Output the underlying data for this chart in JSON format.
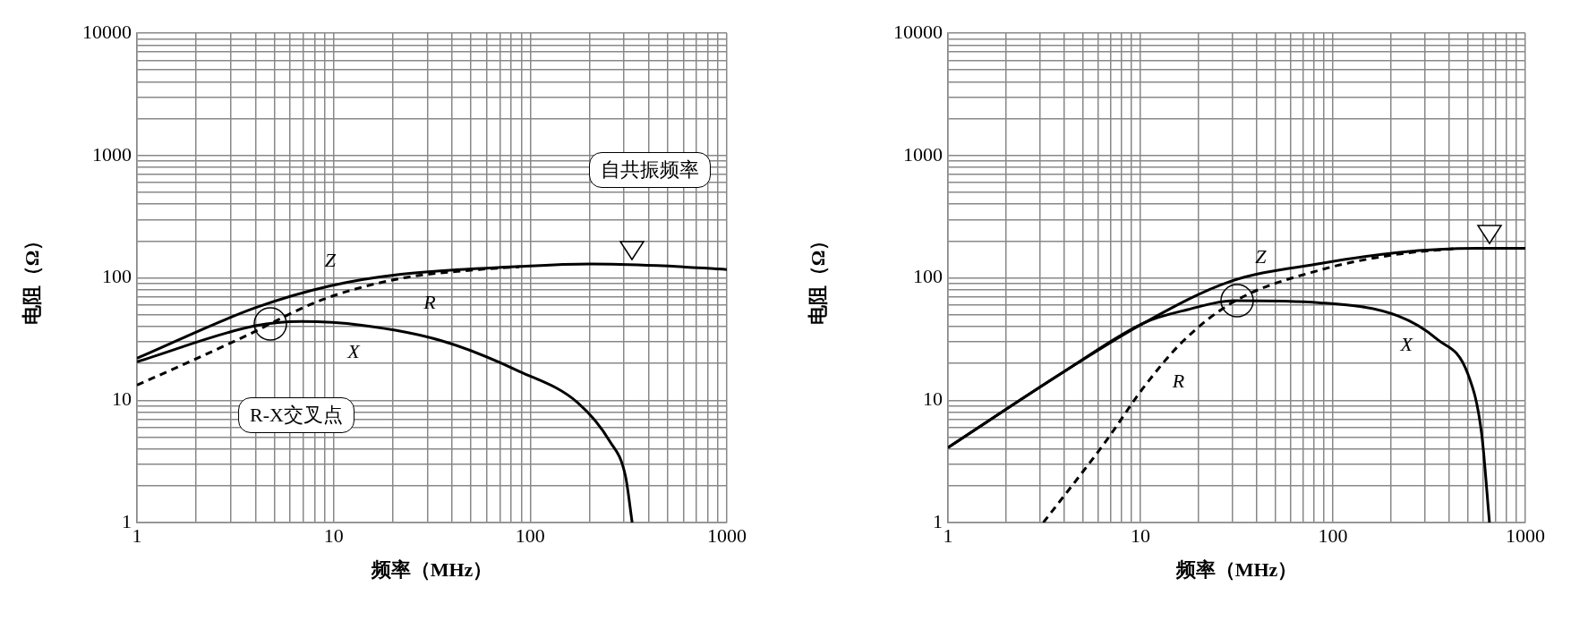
{
  "chart_data": [
    {
      "type": "line",
      "xlabel": "频率（MHz）",
      "ylabel": "电阻（Ω）",
      "log": "xy",
      "grid": true,
      "legend": false,
      "xlim": [
        1,
        1000
      ],
      "ylim": [
        1,
        10000
      ],
      "xticks": [
        1,
        {
          "value": 2,
          "label": null
        },
        {
          "value": 3,
          "label": null
        },
        {
          "value": 4,
          "label": null
        },
        {
          "value": 5,
          "label": null
        },
        {
          "value": 6,
          "label": null
        },
        {
          "value": 7,
          "label": null
        },
        {
          "value": 8,
          "label": null
        },
        {
          "value": 9,
          "label": null
        },
        10,
        {
          "value": 20,
          "label": null
        },
        {
          "value": 30,
          "label": null
        },
        {
          "value": 40,
          "label": null
        },
        {
          "value": 50,
          "label": null
        },
        {
          "value": 60,
          "label": null
        },
        {
          "value": 70,
          "label": null
        },
        {
          "value": 80,
          "label": null
        },
        {
          "value": 90,
          "label": null
        },
        100,
        {
          "value": 200,
          "label": null
        },
        {
          "value": 300,
          "label": null
        },
        {
          "value": 400,
          "label": null
        },
        {
          "value": 500,
          "label": null
        },
        {
          "value": 600,
          "label": null
        },
        {
          "value": 700,
          "label": null
        },
        {
          "value": 800,
          "label": null
        },
        {
          "value": 900,
          "label": null
        },
        1000
      ],
      "yticks": [
        1,
        {
          "value": 2,
          "label": null
        },
        {
          "value": 3,
          "label": null
        },
        {
          "value": 4,
          "label": null
        },
        {
          "value": 5,
          "label": null
        },
        {
          "value": 6,
          "label": null
        },
        {
          "value": 7,
          "label": null
        },
        {
          "value": 8,
          "label": null
        },
        {
          "value": 9,
          "label": null
        },
        10,
        {
          "value": 20,
          "label": null
        },
        {
          "value": 30,
          "label": null
        },
        {
          "value": 40,
          "label": null
        },
        {
          "value": 50,
          "label": null
        },
        {
          "value": 60,
          "label": null
        },
        {
          "value": 70,
          "label": null
        },
        {
          "value": 80,
          "label": null
        },
        {
          "value": 90,
          "label": null
        },
        100,
        {
          "value": 200,
          "label": null
        },
        {
          "value": 300,
          "label": null
        },
        {
          "value": 400,
          "label": null
        },
        {
          "value": 500,
          "label": null
        },
        {
          "value": 600,
          "label": null
        },
        {
          "value": 700,
          "label": null
        },
        {
          "value": 800,
          "label": null
        },
        {
          "value": 900,
          "label": null
        },
        1000,
        {
          "value": 2000,
          "label": null
        },
        {
          "value": 3000,
          "label": null
        },
        {
          "value": 4000,
          "label": null
        },
        {
          "value": 5000,
          "label": null
        },
        {
          "value": 6000,
          "label": null
        },
        {
          "value": 7000,
          "label": null
        },
        {
          "value": 8000,
          "label": null
        },
        {
          "value": 9000,
          "label": null
        },
        10000
      ],
      "annotations": [
        "自共振频率",
        "R-X交叉点"
      ],
      "series": [
        {
          "name": "Z",
          "color": "#000000",
          "line_style": "solid",
          "x": [
            1,
            4,
            9.6,
            22,
            88,
            201,
            442,
            1000
          ],
          "values": [
            22,
            57,
            86,
            107,
            124,
            130,
            126,
            117
          ]
        },
        {
          "name": "R",
          "color": "#000000",
          "line_style": "dashed",
          "x": [
            1,
            1.9,
            3.5,
            8.7,
            22,
            55,
            88
          ],
          "values": [
            13.3,
            21,
            33,
            66,
            99,
            117,
            123
          ]
        },
        {
          "name": "X",
          "color": "#000000",
          "line_style": "solid",
          "x": [
            1,
            4,
            6.9,
            13.9,
            35,
            88,
            175,
            254,
            305,
            330
          ],
          "values": [
            20.6,
            40.6,
            44,
            41,
            30.8,
            17.2,
            9.5,
            4.6,
            2.4,
            1
          ]
        }
      ]
    },
    {
      "type": "line",
      "xlabel": "频率（MHz）",
      "ylabel": "电阻（Ω）",
      "log": "xy",
      "grid": true,
      "legend": false,
      "xlim": [
        1,
        1000
      ],
      "ylim": [
        1,
        10000
      ],
      "xticks": [
        1,
        {
          "value": 2,
          "label": null
        },
        {
          "value": 3,
          "label": null
        },
        {
          "value": 4,
          "label": null
        },
        {
          "value": 5,
          "label": null
        },
        {
          "value": 6,
          "label": null
        },
        {
          "value": 7,
          "label": null
        },
        {
          "value": 8,
          "label": null
        },
        {
          "value": 9,
          "label": null
        },
        10,
        {
          "value": 20,
          "label": null
        },
        {
          "value": 30,
          "label": null
        },
        {
          "value": 40,
          "label": null
        },
        {
          "value": 50,
          "label": null
        },
        {
          "value": 60,
          "label": null
        },
        {
          "value": 70,
          "label": null
        },
        {
          "value": 80,
          "label": null
        },
        {
          "value": 90,
          "label": null
        },
        100,
        {
          "value": 200,
          "label": null
        },
        {
          "value": 300,
          "label": null
        },
        {
          "value": 400,
          "label": null
        },
        {
          "value": 500,
          "label": null
        },
        {
          "value": 600,
          "label": null
        },
        {
          "value": 700,
          "label": null
        },
        {
          "value": 800,
          "label": null
        },
        {
          "value": 900,
          "label": null
        },
        1000
      ],
      "yticks": [
        1,
        {
          "value": 2,
          "label": null
        },
        {
          "value": 3,
          "label": null
        },
        {
          "value": 4,
          "label": null
        },
        {
          "value": 5,
          "label": null
        },
        {
          "value": 6,
          "label": null
        },
        {
          "value": 7,
          "label": null
        },
        {
          "value": 8,
          "label": null
        },
        {
          "value": 9,
          "label": null
        },
        10,
        {
          "value": 20,
          "label": null
        },
        {
          "value": 30,
          "label": null
        },
        {
          "value": 40,
          "label": null
        },
        {
          "value": 50,
          "label": null
        },
        {
          "value": 60,
          "label": null
        },
        {
          "value": 70,
          "label": null
        },
        {
          "value": 80,
          "label": null
        },
        {
          "value": 90,
          "label": null
        },
        100,
        {
          "value": 200,
          "label": null
        },
        {
          "value": 300,
          "label": null
        },
        {
          "value": 400,
          "label": null
        },
        {
          "value": 500,
          "label": null
        },
        {
          "value": 600,
          "label": null
        },
        {
          "value": 700,
          "label": null
        },
        {
          "value": 800,
          "label": null
        },
        {
          "value": 900,
          "label": null
        },
        1000,
        {
          "value": 2000,
          "label": null
        },
        {
          "value": 3000,
          "label": null
        },
        {
          "value": 4000,
          "label": null
        },
        {
          "value": 5000,
          "label": null
        },
        {
          "value": 6000,
          "label": null
        },
        {
          "value": 7000,
          "label": null
        },
        {
          "value": 8000,
          "label": null
        },
        {
          "value": 9000,
          "label": null
        },
        10000
      ],
      "series": [
        {
          "name": "Z",
          "color": "#000000",
          "line_style": "solid",
          "x": [
            1,
            4.1,
            10.5,
            29,
            86,
            217,
            552,
            1000
          ],
          "values": [
            4.1,
            17.5,
            43,
            93,
            131,
            161,
            174,
            174
          ]
        },
        {
          "name": "R",
          "color": "#000000",
          "line_style": "dashed",
          "x": [
            3.13,
            6.6,
            10.5,
            16.7,
            30.7,
            86,
            217,
            437
          ],
          "values": [
            1,
            4.6,
            13,
            30.5,
            64,
            116,
            156,
            174
          ]
        },
        {
          "name": "X",
          "color": "#000000",
          "line_style": "solid",
          "x": [
            1,
            4.1,
            10.5,
            17.6,
            30.7,
            86,
            217,
            347,
            504,
            593,
            651
          ],
          "values": [
            4.1,
            17.5,
            43,
            55,
            65,
            62.5,
            49,
            31.6,
            16.2,
            5.3,
            1
          ]
        }
      ]
    }
  ]
}
